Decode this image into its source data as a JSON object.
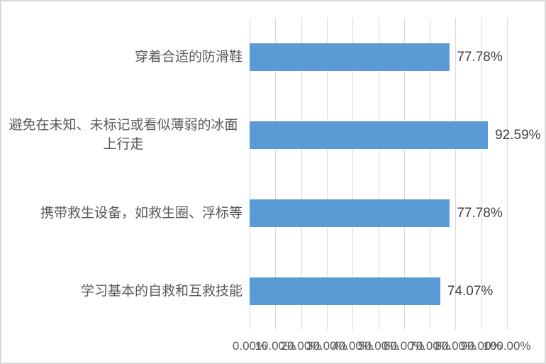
{
  "chart_data": {
    "type": "bar",
    "orientation": "horizontal",
    "title": "",
    "categories": [
      "穿着合适的防滑鞋",
      "避免在未知、未标记或看似薄弱的冰面上行走",
      "携带救生设备，如救生圈、浮标等",
      "学习基本的自救和互救技能"
    ],
    "values": [
      77.78,
      92.59,
      77.78,
      74.07
    ],
    "value_labels": [
      "77.78%",
      "92.59%",
      "77.78%",
      "74.07%"
    ],
    "xlabel": "",
    "ylabel": "",
    "xlim": [
      0,
      100
    ],
    "x_ticks": [
      0,
      10,
      20,
      30,
      40,
      50,
      60,
      70,
      80,
      90,
      100
    ],
    "x_tick_labels": [
      "0.00%",
      "10.00%",
      "20.00%",
      "30.00%",
      "40.00%",
      "50.00%",
      "60.00%",
      "70.00%",
      "80.00%",
      "90.00%",
      "100.00%"
    ],
    "grid": "vertical-on",
    "legend": "none",
    "colors": {
      "bar_fill": "#5B9BD5",
      "gridline": "#D9D9D9",
      "category_text": "#595959",
      "value_text": "#404040",
      "axis_text": "#595959",
      "chart_border": "#D9D9D9",
      "background": "#FFFFFF"
    }
  }
}
